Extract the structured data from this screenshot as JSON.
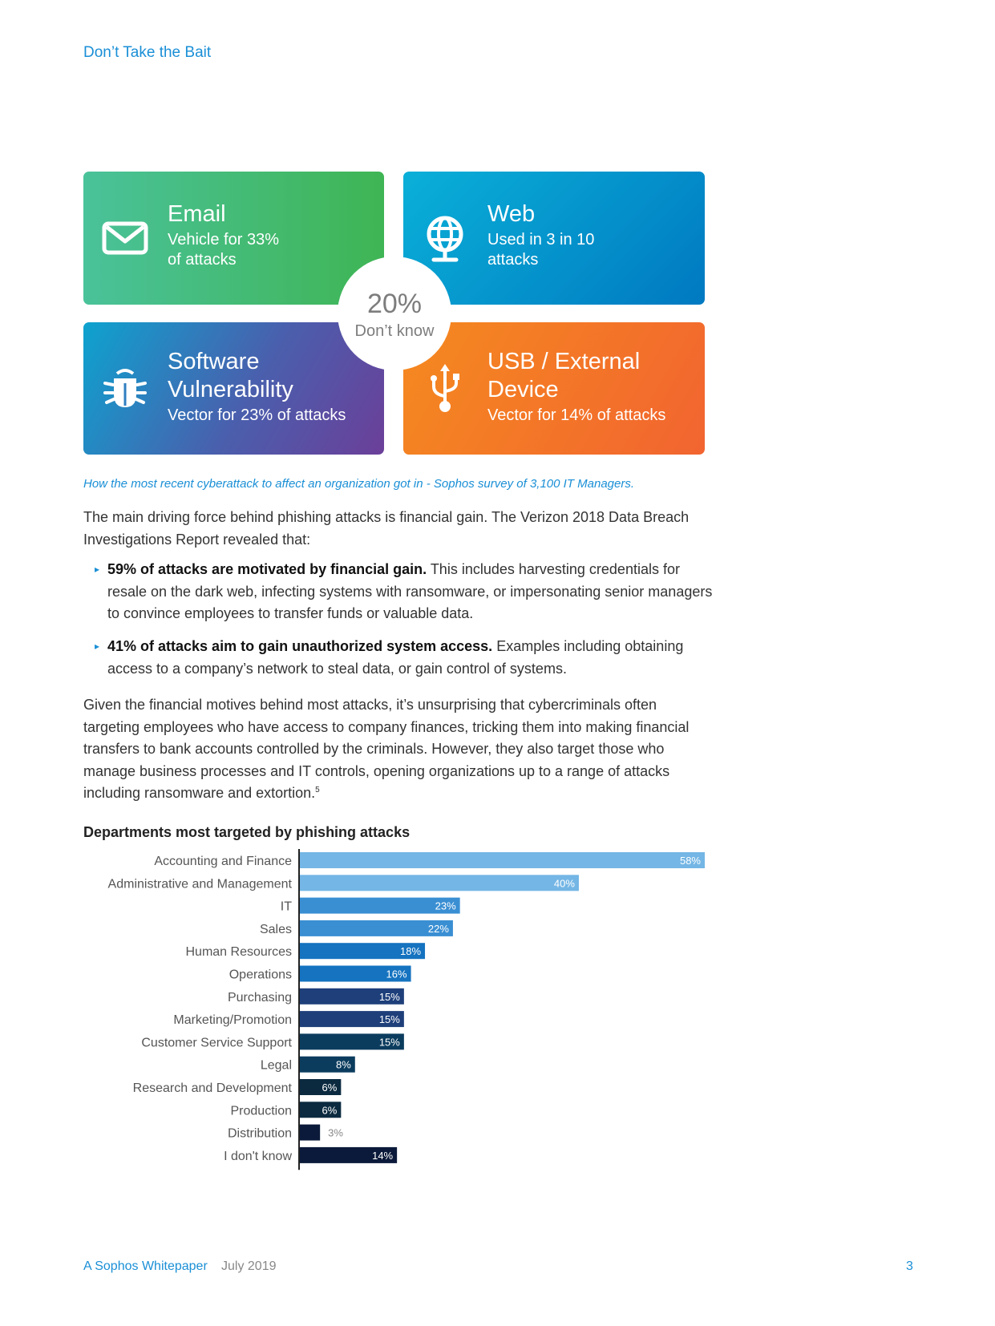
{
  "header": {
    "title": "Don’t Take the Bait"
  },
  "tiles": {
    "email": {
      "title": "Email",
      "line1": "Vehicle for 33%",
      "line2": "of attacks",
      "icon": "envelope-icon"
    },
    "web": {
      "title": "Web",
      "line1": "Used in 3 in 10",
      "line2": "attacks",
      "icon": "globe-icon"
    },
    "software": {
      "title1": "Software",
      "title2": "Vulnerability",
      "sub": "Vector for 23% of attacks",
      "icon": "bug-icon"
    },
    "usb": {
      "title1": "USB / External",
      "title2": "Device",
      "sub": "Vector for 14% of attacks",
      "icon": "usb-icon"
    },
    "center": {
      "pct": "20%",
      "label": "Don’t know"
    }
  },
  "caption": "How the most recent cyberattack to affect an organization got in - Sophos survey of 3,100 IT Managers.",
  "body": {
    "para1": "The main driving force behind phishing attacks is financial gain. The Verizon 2018 Data Breach Investigations Report revealed that:",
    "bullet1_bold": "59% of attacks are motivated by financial gain.",
    "bullet1_text": " This includes harvesting credentials for resale on the dark web, infecting systems with ransomware, or impersonating senior managers to convince employees to transfer funds or valuable data.",
    "bullet2_bold": "41% of attacks aim to gain unauthorized system access.",
    "bullet2_text": " Examples including obtaining access to a company’s network to steal data, or gain control of systems.",
    "para2": "Given the financial motives behind most attacks, it’s unsurprising that cybercriminals often targeting employees who have access to company finances, tricking them into making financial transfers to bank accounts controlled by the criminals. However, they also target those who manage business processes and IT controls, opening organizations up to a range of attacks including ransomware and extortion.",
    "para2_footnote": "5"
  },
  "chart_data": {
    "type": "bar",
    "orientation": "horizontal",
    "title": "Departments most targeted by phishing attacks",
    "categories": [
      "Accounting and Finance",
      "Administrative and Management",
      "IT",
      "Sales",
      "Human Resources",
      "Operations",
      "Purchasing",
      "Marketing/Promotion",
      "Customer Service Support",
      "Legal",
      "Research and Development",
      "Production",
      "Distribution",
      "I don't know"
    ],
    "values": [
      58,
      40,
      23,
      22,
      18,
      16,
      15,
      15,
      15,
      8,
      6,
      6,
      3,
      14
    ],
    "value_labels": [
      "58%",
      "40%",
      "23%",
      "22%",
      "18%",
      "16%",
      "15%",
      "15%",
      "15%",
      "8%",
      "6%",
      "6%",
      "3%",
      "14%"
    ],
    "colors": [
      "#74b6e5",
      "#74b6e5",
      "#3a8fd3",
      "#3a8fd3",
      "#1573c0",
      "#1573c0",
      "#1e3f7a",
      "#1e3f7a",
      "#0b3c5e",
      "#0b3c5e",
      "#0b2a40",
      "#0b2a40",
      "#0b1a3a",
      "#0b1a3a"
    ],
    "xlim": [
      0,
      58
    ]
  },
  "footer": {
    "brand": "A Sophos Whitepaper",
    "date": "July 2019",
    "page": "3"
  }
}
